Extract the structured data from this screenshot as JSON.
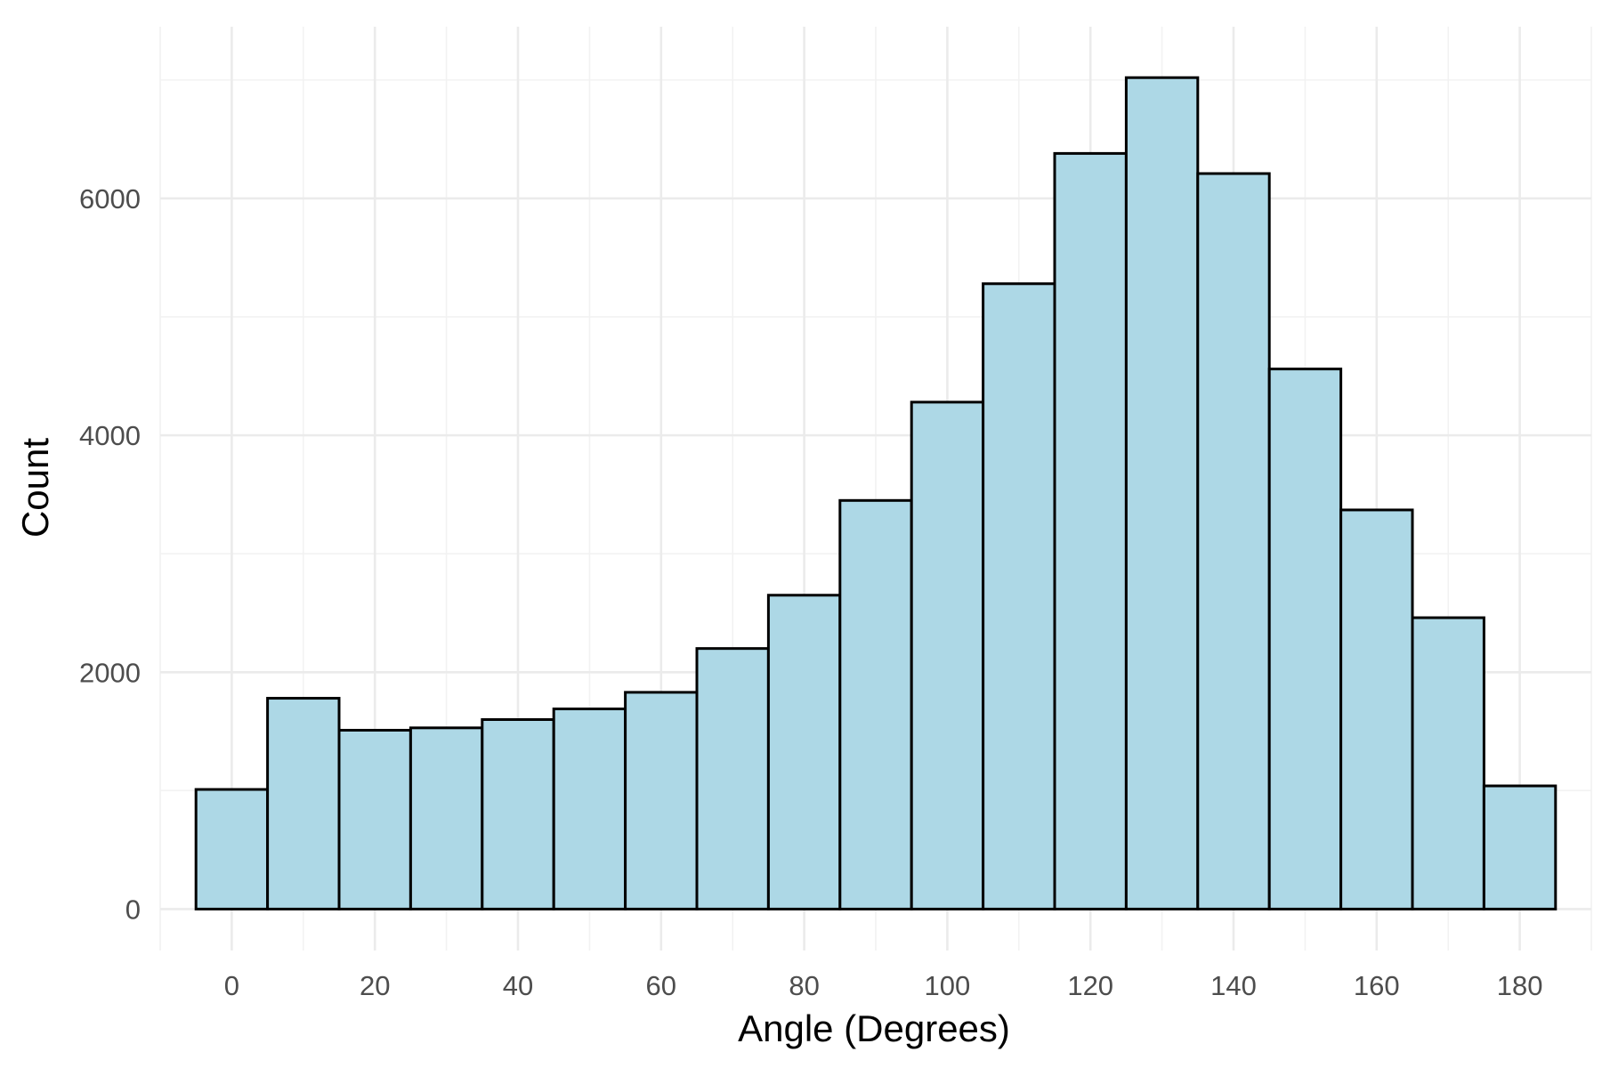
{
  "chart_data": {
    "type": "bar",
    "title": "",
    "xlabel": "Angle (Degrees)",
    "ylabel": "Count",
    "bin_width": 10,
    "bin_centers": [
      0,
      10,
      20,
      30,
      40,
      50,
      60,
      70,
      80,
      90,
      100,
      110,
      120,
      130,
      140,
      150,
      160,
      170,
      180
    ],
    "values": [
      1010,
      1780,
      1510,
      1530,
      1600,
      1690,
      1830,
      2200,
      2650,
      3450,
      4280,
      5280,
      6380,
      7020,
      6210,
      4560,
      3370,
      2460,
      1040
    ],
    "xlim": [
      -10,
      190
    ],
    "ylim": [
      -350,
      7450
    ],
    "x_ticks": [
      0,
      20,
      40,
      60,
      80,
      100,
      120,
      140,
      160,
      180
    ],
    "x_tick_labels": [
      "0",
      "20",
      "40",
      "60",
      "80",
      "100",
      "120",
      "140",
      "160",
      "180"
    ],
    "y_ticks": [
      0,
      2000,
      4000,
      6000
    ],
    "y_tick_labels": [
      "0",
      "2000",
      "4000",
      "6000"
    ],
    "grid": true,
    "legend": "none",
    "colors": {
      "bar_fill": "#add8e6",
      "bar_outline": "#000000",
      "grid_major": "#ebebeb",
      "grid_minor": "#f2f2f2",
      "tick_text": "#4d4d4d",
      "axis_title": "#000000"
    }
  }
}
